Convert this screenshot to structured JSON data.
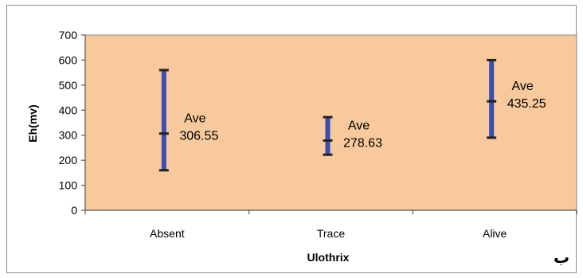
{
  "chart_data": {
    "type": "error-bar",
    "xlabel": "Ulothrix",
    "ylabel": "Eh(mv)",
    "ylim": [
      0,
      700
    ],
    "yticks": [
      "0",
      "100",
      "200",
      "300",
      "400",
      "500",
      "600",
      "700"
    ],
    "categories": [
      "Absent",
      "Trace",
      "Alive"
    ],
    "points": [
      {
        "category": "Absent",
        "min": 160,
        "max": 560,
        "average": 306.55,
        "label_line1": "Ave",
        "label_line2": "306.55"
      },
      {
        "category": "Trace",
        "min": 222,
        "max": 372,
        "average": 278.63,
        "label_line1": "Ave",
        "label_line2": "278.63"
      },
      {
        "category": "Alive",
        "min": 290,
        "max": 600,
        "average": 435.25,
        "label_line1": "Ave",
        "label_line2": "435.25"
      }
    ],
    "grid": false,
    "legend": "none",
    "corner_mark": "ب",
    "colors": {
      "plot_background": "#f8c99d",
      "bar": "#3a4db0",
      "cap": "#222222",
      "axis": "#555555"
    }
  }
}
